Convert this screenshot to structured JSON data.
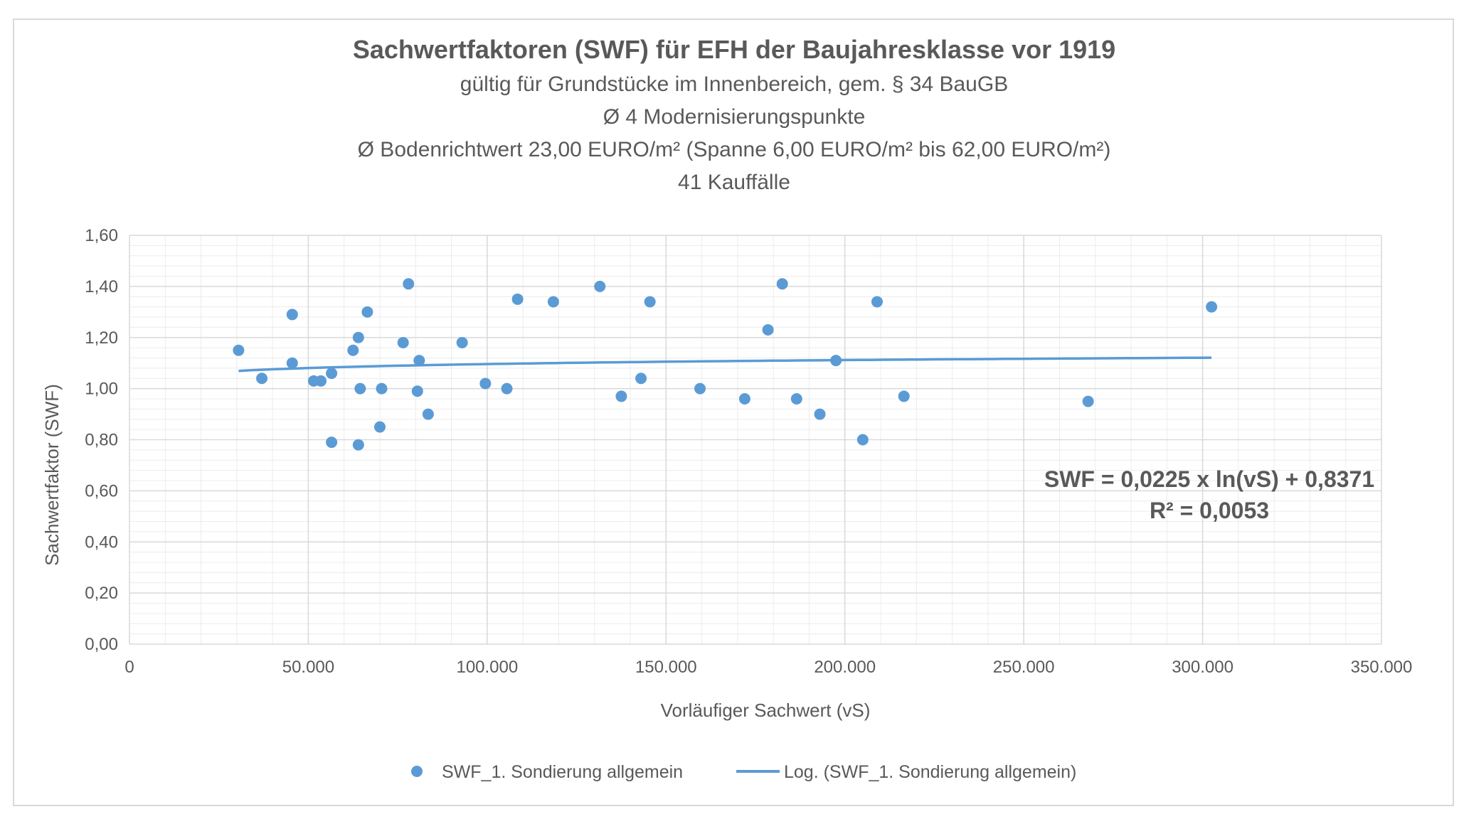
{
  "chart_data": {
    "type": "scatter",
    "title": "Sachwertfaktoren (SWF) für EFH der Baujahresklasse vor 1919",
    "subtitles": [
      "gültig für Grundstücke im Innenbereich, gem. § 34 BauGB",
      "Ø 4 Modernisierungspunkte",
      "Ø Bodenrichtwert 23,00 EURO/m² (Spanne 6,00 EURO/m² bis 62,00 EURO/m²)",
      "41 Kauffälle"
    ],
    "xlabel": "Vorläufiger Sachwert (vS)",
    "ylabel": "Sachwertfaktor (SWF)",
    "xlim": [
      0,
      350000
    ],
    "ylim": [
      0,
      1.6
    ],
    "x_ticks": [
      0,
      50000,
      100000,
      150000,
      200000,
      250000,
      300000,
      350000
    ],
    "x_tick_labels": [
      "0",
      "50.000",
      "100.000",
      "150.000",
      "200.000",
      "250.000",
      "300.000",
      "350.000"
    ],
    "y_ticks": [
      0,
      0.2,
      0.4,
      0.6,
      0.8,
      1.0,
      1.2,
      1.4,
      1.6
    ],
    "y_tick_labels": [
      "0,00",
      "0,20",
      "0,40",
      "0,60",
      "0,80",
      "1,00",
      "1,20",
      "1,40",
      "1,60"
    ],
    "grid": true,
    "legend_position": "bottom",
    "series": [
      {
        "name": "SWF_1. Sondierung allgemein",
        "color": "#5b9bd5",
        "points": [
          {
            "x": 30500,
            "y": 1.15
          },
          {
            "x": 37000,
            "y": 1.04
          },
          {
            "x": 45500,
            "y": 1.29
          },
          {
            "x": 45500,
            "y": 1.1
          },
          {
            "x": 51500,
            "y": 1.03
          },
          {
            "x": 53500,
            "y": 1.03
          },
          {
            "x": 56500,
            "y": 1.06
          },
          {
            "x": 56500,
            "y": 0.79
          },
          {
            "x": 62500,
            "y": 1.15
          },
          {
            "x": 64000,
            "y": 1.2
          },
          {
            "x": 64500,
            "y": 1.0
          },
          {
            "x": 64000,
            "y": 0.78
          },
          {
            "x": 66500,
            "y": 1.3
          },
          {
            "x": 70000,
            "y": 0.85
          },
          {
            "x": 70500,
            "y": 1.0
          },
          {
            "x": 76500,
            "y": 1.18
          },
          {
            "x": 78000,
            "y": 1.41
          },
          {
            "x": 81000,
            "y": 1.11
          },
          {
            "x": 80500,
            "y": 0.99
          },
          {
            "x": 83500,
            "y": 0.9
          },
          {
            "x": 93000,
            "y": 1.18
          },
          {
            "x": 99500,
            "y": 1.02
          },
          {
            "x": 105500,
            "y": 1.0
          },
          {
            "x": 108500,
            "y": 1.35
          },
          {
            "x": 118500,
            "y": 1.34
          },
          {
            "x": 131500,
            "y": 1.4
          },
          {
            "x": 137500,
            "y": 0.97
          },
          {
            "x": 143000,
            "y": 1.04
          },
          {
            "x": 145500,
            "y": 1.34
          },
          {
            "x": 159500,
            "y": 1.0
          },
          {
            "x": 172000,
            "y": 0.96
          },
          {
            "x": 178500,
            "y": 1.23
          },
          {
            "x": 182500,
            "y": 1.41
          },
          {
            "x": 186500,
            "y": 0.96
          },
          {
            "x": 193000,
            "y": 0.9
          },
          {
            "x": 197500,
            "y": 1.11
          },
          {
            "x": 205000,
            "y": 0.8
          },
          {
            "x": 209000,
            "y": 1.34
          },
          {
            "x": 216500,
            "y": 0.97
          },
          {
            "x": 268000,
            "y": 0.95
          },
          {
            "x": 302500,
            "y": 1.32
          }
        ]
      },
      {
        "name": "Log. (SWF_1. Sondierung allgemein)",
        "type": "trendline",
        "color": "#5b9bd5",
        "fit": {
          "model": "log",
          "a": 0.0225,
          "b": 0.8371
        },
        "x_range": [
          30500,
          302500
        ]
      }
    ],
    "annotations": [
      "SWF = 0,0225 x ln(vS) + 0,8371",
      "R² = 0,0053"
    ]
  }
}
